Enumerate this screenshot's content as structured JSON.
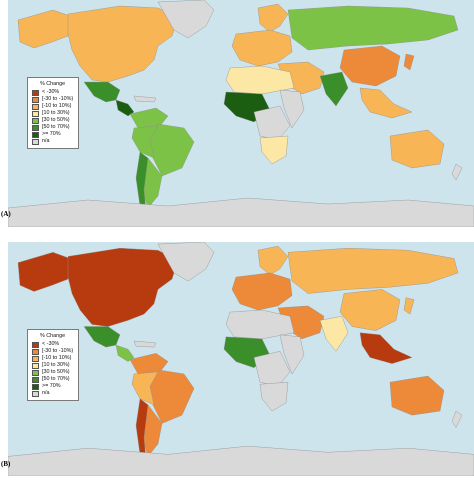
{
  "legend": {
    "title": "% Change",
    "classes": [
      {
        "label": "< -30%",
        "color": "#b83a0f"
      },
      {
        "label": "[-30 to -10%)",
        "color": "#ec8a3a"
      },
      {
        "label": "[-10 to 10%)",
        "color": "#f7b556"
      },
      {
        "label": "[10 to 30%)",
        "color": "#fde7a4"
      },
      {
        "label": "[30 to 50%)",
        "color": "#7cc246"
      },
      {
        "label": "[50 to 70%)",
        "color": "#3b8f2a"
      },
      {
        "label": ">= 70%",
        "color": "#1b5e12"
      },
      {
        "label": "n/a",
        "color": "#d9d9d9"
      }
    ]
  },
  "colors": {
    "ocean": "#cde4ec",
    "border": "#8f8f8f",
    "na": "#d9d9d9"
  },
  "panels": [
    {
      "label": "(A)",
      "regions": {
        "north_america": "#f7b556",
        "alaska": "#f7b556",
        "greenland": "#d9d9d9",
        "mexico": "#3b8f2a",
        "central_america": "#1b5e12",
        "caribbean": "#d9d9d9",
        "colombia_venezuela": "#7cc246",
        "brazil": "#7cc246",
        "peru_bolivia": "#7cc246",
        "argentina": "#7cc246",
        "chile": "#3b8f2a",
        "europe": "#f7b556",
        "scandinavia": "#f7b556",
        "russia": "#7cc246",
        "china": "#ec8a3a",
        "india": "#3b8f2a",
        "middle_east": "#f7b556",
        "north_africa": "#fde7a4",
        "west_africa": "#1b5e12",
        "central_africa": "#d9d9d9",
        "east_africa": "#d9d9d9",
        "southern_africa": "#fde7a4",
        "southeast_asia": "#f7b556",
        "japan": "#ec8a3a",
        "australia": "#f7b556",
        "new_zealand": "#d9d9d9",
        "antarctica": "#d9d9d9"
      }
    },
    {
      "label": "(B)",
      "regions": {
        "north_america": "#b83a0f",
        "alaska": "#b83a0f",
        "greenland": "#d9d9d9",
        "mexico": "#3b8f2a",
        "central_america": "#7cc246",
        "caribbean": "#d9d9d9",
        "colombia_venezuela": "#ec8a3a",
        "brazil": "#ec8a3a",
        "peru_bolivia": "#f7b556",
        "argentina": "#ec8a3a",
        "chile": "#b83a0f",
        "europe": "#ec8a3a",
        "scandinavia": "#f7b556",
        "russia": "#f7b556",
        "china": "#f7b556",
        "india": "#fde7a4",
        "middle_east": "#ec8a3a",
        "north_africa": "#d9d9d9",
        "west_africa": "#3b8f2a",
        "central_africa": "#d9d9d9",
        "east_africa": "#d9d9d9",
        "southern_africa": "#d9d9d9",
        "southeast_asia": "#b83a0f",
        "japan": "#f7b556",
        "australia": "#ec8a3a",
        "new_zealand": "#d9d9d9",
        "antarctica": "#d9d9d9"
      }
    }
  ]
}
